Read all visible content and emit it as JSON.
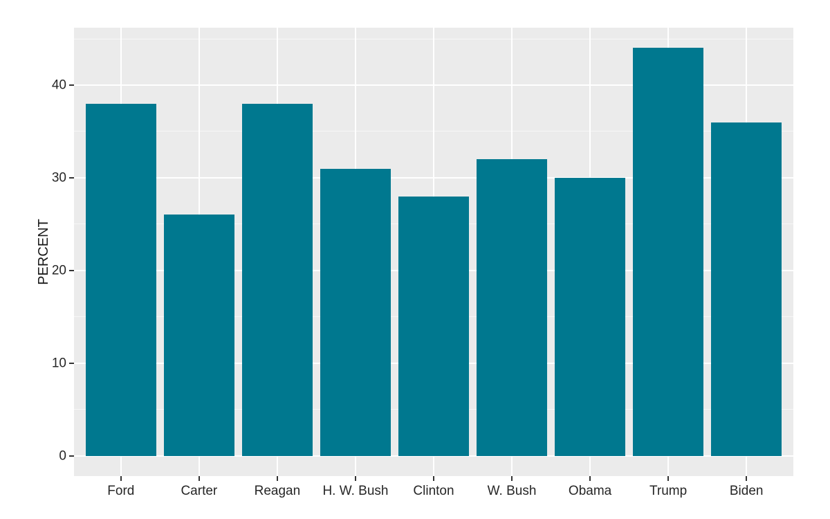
{
  "chart_data": {
    "type": "bar",
    "title": "",
    "categories": [
      "Ford",
      "Carter",
      "Reagan",
      "H. W. Bush",
      "Clinton",
      "W. Bush",
      "Obama",
      "Trump",
      "Biden"
    ],
    "values": [
      38,
      26,
      38,
      31,
      28,
      32,
      30,
      44,
      36
    ],
    "xlabel": "",
    "ylabel": "PERCENT",
    "y_ticks": [
      0,
      10,
      20,
      30,
      40
    ],
    "y_minor_ticks": [
      5,
      15,
      25,
      35,
      45
    ],
    "ylim": [
      -2.2,
      46.2
    ],
    "grid": "on",
    "legend": "none",
    "style_theme": "ggplot-gray",
    "colors": {
      "bar_fill": "#00788F",
      "panel_background": "#EBEBEB",
      "grid_major": "#FFFFFF",
      "grid_minor": "#F7F7F7",
      "tick_mark": "#333333",
      "axis_text": "#262626",
      "axis_title": "#1A1A1A",
      "page_background": "#FFFFFF"
    }
  }
}
